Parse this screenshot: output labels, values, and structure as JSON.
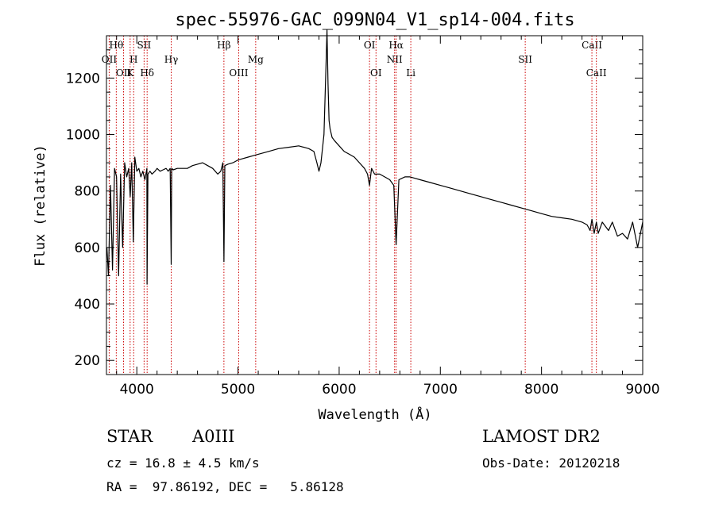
{
  "chart_data": {
    "type": "line",
    "title": "spec-55976-GAC_099N04_V1_sp14-004.fits",
    "xlabel": "Wavelength (Å)",
    "ylabel": "Flux (relative)",
    "xlim": [
      3700,
      9000
    ],
    "ylim": [
      150,
      1350
    ],
    "x_ticks": [
      4000,
      5000,
      6000,
      7000,
      8000,
      9000
    ],
    "y_ticks": [
      200,
      400,
      600,
      800,
      1000,
      1200
    ],
    "grid": false,
    "series": [
      {
        "x": [
          3705,
          3720,
          3740,
          3760,
          3780,
          3800,
          3820,
          3840,
          3860,
          3880,
          3900,
          3920,
          3935,
          3950,
          3965,
          3980,
          4000,
          4020,
          4040,
          4060,
          4080,
          4100,
          4101,
          4110,
          4130,
          4150,
          4180,
          4200,
          4230,
          4260,
          4290,
          4310,
          4330,
          4340,
          4345,
          4360,
          4400,
          4450,
          4500,
          4550,
          4600,
          4650,
          4700,
          4750,
          4800,
          4830,
          4850,
          4861,
          4870,
          4900,
          4950,
          5000,
          5050,
          5100,
          5150,
          5200,
          5300,
          5400,
          5500,
          5600,
          5700,
          5750,
          5780,
          5800,
          5820,
          5850,
          5870,
          5880,
          5890,
          5900,
          5910,
          5930,
          5950,
          6000,
          6050,
          6100,
          6150,
          6200,
          6250,
          6280,
          6300,
          6320,
          6350,
          6400,
          6450,
          6500,
          6540,
          6563,
          6590,
          6620,
          6650,
          6700,
          6750,
          6800,
          6900,
          7000,
          7100,
          7200,
          7300,
          7400,
          7500,
          7600,
          7700,
          7800,
          7900,
          8000,
          8100,
          8200,
          8300,
          8400,
          8450,
          8480,
          8498,
          8520,
          8542,
          8560,
          8600,
          8662,
          8700,
          8750,
          8800,
          8850,
          8900,
          8950,
          9000
        ],
        "y": [
          600,
          500,
          820,
          520,
          880,
          850,
          500,
          860,
          600,
          900,
          850,
          880,
          780,
          900,
          620,
          920,
          870,
          880,
          850,
          870,
          840,
          880,
          470,
          860,
          870,
          860,
          870,
          880,
          870,
          875,
          880,
          870,
          880,
          540,
          880,
          875,
          880,
          880,
          880,
          890,
          895,
          900,
          890,
          880,
          860,
          870,
          900,
          550,
          890,
          895,
          900,
          910,
          915,
          920,
          925,
          930,
          940,
          950,
          955,
          960,
          950,
          940,
          900,
          870,
          900,
          1000,
          1250,
          1370,
          1180,
          1050,
          1020,
          990,
          980,
          960,
          940,
          930,
          920,
          900,
          880,
          860,
          820,
          880,
          860,
          860,
          850,
          840,
          820,
          610,
          840,
          845,
          850,
          850,
          845,
          840,
          830,
          820,
          810,
          800,
          790,
          780,
          770,
          760,
          750,
          740,
          730,
          720,
          710,
          705,
          700,
          690,
          680,
          660,
          700,
          650,
          690,
          650,
          690,
          660,
          690,
          640,
          650,
          630,
          690,
          600,
          690
        ]
      }
    ],
    "lines": [
      {
        "wl": 3727,
        "label": "OII",
        "row": 2
      },
      {
        "wl": 3797,
        "label": "Hθ",
        "row": 1
      },
      {
        "wl": 3869,
        "label": "OII",
        "row": 3
      },
      {
        "wl": 3934,
        "label": "K",
        "row": 3
      },
      {
        "wl": 3969,
        "label": "H",
        "row": 2
      },
      {
        "wl": 4072,
        "label": "SII",
        "row": 1
      },
      {
        "wl": 4102,
        "label": "Hδ",
        "row": 3
      },
      {
        "wl": 4340,
        "label": "Hγ",
        "row": 2
      },
      {
        "wl": 4861,
        "label": "Hβ",
        "row": 1
      },
      {
        "wl": 5007,
        "label": "OIII",
        "row": 3
      },
      {
        "wl": 5175,
        "label": "Mg",
        "row": 2
      },
      {
        "wl": 6300,
        "label": "OI",
        "row": 1
      },
      {
        "wl": 6364,
        "label": "OI",
        "row": 3
      },
      {
        "wl": 6548,
        "label": "NII",
        "row": 2
      },
      {
        "wl": 6563,
        "label": "Hα",
        "row": 1
      },
      {
        "wl": 6708,
        "label": "Li",
        "row": 3
      },
      {
        "wl": 7839,
        "label": "SII",
        "row": 2
      },
      {
        "wl": 8498,
        "label": "CaII",
        "row": 1
      },
      {
        "wl": 8542,
        "label": "CaII",
        "row": 3
      }
    ]
  },
  "info": {
    "class": "STAR",
    "subclass": "A0III",
    "survey": "LAMOST DR2",
    "cz": "cz = 16.8 ± 4.5 km/s",
    "obs_date": "Obs-Date: 20120218",
    "coords": "RA =  97.86192, DEC =   5.86128"
  }
}
